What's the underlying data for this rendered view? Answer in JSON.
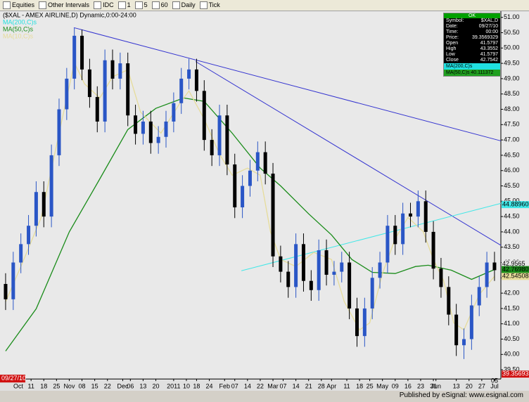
{
  "toolbar": {
    "items": [
      "Equities",
      "Other Intervals",
      "IDC",
      "1",
      "5",
      "60",
      "Daily",
      "Tick"
    ]
  },
  "footer": "Published by eSignal: www.esignal.com",
  "info_box": {
    "header": "OK",
    "rows": [
      [
        "Symbol:",
        "$XAL,D"
      ],
      [
        "Date:",
        "09/27/10"
      ],
      [
        "Time:",
        "00:00"
      ],
      [
        "Price:",
        "39.3569329"
      ],
      [
        "Open",
        "41.5797"
      ],
      [
        "High",
        "43.3552"
      ],
      [
        "Low",
        "41.5797"
      ],
      [
        "Close",
        "42.7542"
      ]
    ],
    "ma_rows": [
      "MA(200,C)s",
      "MA(50,C)s 40.111372"
    ]
  },
  "chart_data": {
    "type": "candlestick",
    "title": "($XAL - AMEX AIRLINE,D) Dynamic,0:00-24:00",
    "up_color": "#2a56c6",
    "down_color": "#000000",
    "background": "#e9e9e9",
    "x": [
      0,
      3,
      6,
      9,
      12,
      15,
      18,
      21,
      24,
      27,
      30,
      33,
      36,
      39,
      42,
      45,
      48,
      51,
      54,
      57,
      60,
      63,
      66,
      69,
      72,
      75,
      78,
      81,
      84,
      87,
      90,
      93,
      96,
      99,
      102,
      105,
      108,
      111,
      114,
      117,
      120,
      123,
      126,
      129,
      132,
      135,
      138,
      141,
      144,
      147,
      150,
      153,
      156,
      159,
      162,
      165,
      168,
      171,
      174,
      177,
      180,
      183,
      186,
      189,
      192
    ],
    "open": [
      42.3,
      41.8,
      43.0,
      43.6,
      44.2,
      45.3,
      44.5,
      46.5,
      48.0,
      49.0,
      50.4,
      49.3,
      48.4,
      47.6,
      49.6,
      49.0,
      49.5,
      47.8,
      47.2,
      47.6,
      46.9,
      47.1,
      47.6,
      48.2,
      49.0,
      49.3,
      48.6,
      47.0,
      46.5,
      47.8,
      46.2,
      44.8,
      45.5,
      46.0,
      46.6,
      45.9,
      43.2,
      42.7,
      42.2,
      43.6,
      42.4,
      42.1,
      43.4,
      42.6,
      42.7,
      43.0,
      41.5,
      40.6,
      41.5,
      42.5,
      43.0,
      44.2,
      43.6,
      44.6,
      44.5,
      45.0,
      44.0,
      42.8,
      42.2,
      41.3,
      40.3,
      40.5,
      41.6,
      42.2,
      43.0
    ],
    "high": [
      42.65,
      43.35,
      43.95,
      44.55,
      45.65,
      45.65,
      46.85,
      48.35,
      49.35,
      50.65,
      50.6,
      49.65,
      48.75,
      49.95,
      49.95,
      49.85,
      49.85,
      48.15,
      47.95,
      47.95,
      47.45,
      47.95,
      48.55,
      49.35,
      49.65,
      49.65,
      48.95,
      47.35,
      48.15,
      48.15,
      46.55,
      45.85,
      46.35,
      46.95,
      46.95,
      46.25,
      43.55,
      43.05,
      43.95,
      43.95,
      42.75,
      43.75,
      43.75,
      43.05,
      43.35,
      43.35,
      41.85,
      41.85,
      42.85,
      43.35,
      44.55,
      44.55,
      44.95,
      44.95,
      45.35,
      45.35,
      44.35,
      43.15,
      42.55,
      41.65,
      40.85,
      41.95,
      42.55,
      43.35,
      43.35
    ],
    "low": [
      41.45,
      41.45,
      42.65,
      43.25,
      43.85,
      44.15,
      44.15,
      46.15,
      47.65,
      48.65,
      48.95,
      48.05,
      47.25,
      47.25,
      48.65,
      48.65,
      47.45,
      46.85,
      46.85,
      46.55,
      46.55,
      46.75,
      47.25,
      47.85,
      48.65,
      48.25,
      46.65,
      46.15,
      46.15,
      45.85,
      44.45,
      44.45,
      45.15,
      45.65,
      45.55,
      42.85,
      42.35,
      41.85,
      41.85,
      42.05,
      41.75,
      41.75,
      42.25,
      42.25,
      42.35,
      41.15,
      40.25,
      40.25,
      41.15,
      42.15,
      42.65,
      43.25,
      43.25,
      44.15,
      44.15,
      43.65,
      42.45,
      41.85,
      40.95,
      39.95,
      39.85,
      40.15,
      41.25,
      41.85,
      42.4
    ],
    "close": [
      41.8,
      43.0,
      43.6,
      44.2,
      45.3,
      44.5,
      46.5,
      48.0,
      49.0,
      50.4,
      49.3,
      48.4,
      47.6,
      49.6,
      49.0,
      49.5,
      47.8,
      47.2,
      47.6,
      46.9,
      47.1,
      47.6,
      48.2,
      49.0,
      49.3,
      48.6,
      47.0,
      46.5,
      47.8,
      46.2,
      44.8,
      45.5,
      46.0,
      46.6,
      45.9,
      43.2,
      42.7,
      42.2,
      43.6,
      42.4,
      42.1,
      43.4,
      42.6,
      42.7,
      43.0,
      41.5,
      40.6,
      41.5,
      42.5,
      43.0,
      44.2,
      43.6,
      44.6,
      44.5,
      45.0,
      44.0,
      42.8,
      42.2,
      41.3,
      40.3,
      40.5,
      41.6,
      42.2,
      43.0,
      42.75
    ],
    "series": [
      {
        "name": "MA(200,C)s",
        "color": "#20e0e0"
      },
      {
        "name": "MA(50,C)s",
        "color": "#1a8c1a",
        "x": [
          0,
          12,
          25,
          37,
          48,
          59,
          70,
          78,
          89,
          100,
          108,
          119,
          128,
          136,
          144,
          153,
          161,
          166,
          175,
          183,
          192
        ],
        "values": [
          40.11,
          41.49,
          44.0,
          45.73,
          47.34,
          48.03,
          48.37,
          48.26,
          47.22,
          46.08,
          45.5,
          44.59,
          43.9,
          43.1,
          42.68,
          42.64,
          42.87,
          42.91,
          42.75,
          42.45,
          42.77
        ]
      },
      {
        "name": "MA(10,C)s",
        "color": "#e6dc9a",
        "x": [
          0,
          6,
          14,
          21,
          27,
          31,
          37,
          42,
          48,
          53,
          61,
          68,
          72,
          78,
          84,
          89,
          95,
          100,
          104,
          108,
          114,
          121,
          128,
          133,
          139,
          143,
          148,
          153,
          158,
          164,
          168,
          172,
          176,
          180,
          186,
          192
        ],
        "values": [
          41.72,
          42.87,
          44.47,
          47.22,
          49.52,
          48.83,
          48.37,
          49.06,
          49.29,
          47.91,
          47.22,
          48.14,
          48.6,
          47.68,
          46.54,
          45.85,
          46.08,
          45.85,
          44.01,
          43.1,
          42.87,
          43.33,
          43.1,
          41.72,
          40.8,
          41.03,
          42.64,
          43.78,
          44.47,
          44.01,
          43.1,
          42.41,
          41.03,
          40.8,
          41.95,
          42.55
        ]
      }
    ],
    "trendlines": [
      {
        "color": "#3434d0",
        "x": [
          26.8,
          194.5
        ],
        "values": [
          50.665,
          46.97
        ]
      },
      {
        "color": "#3434d0",
        "x": [
          74.6,
          194.5
        ],
        "values": [
          49.56,
          43.56
        ]
      },
      {
        "color": "#40e8e8",
        "x": [
          92.6,
          194.5
        ],
        "values": [
          42.73,
          44.93
        ]
      }
    ],
    "price_flags": [
      {
        "value": 44.889606,
        "color": "#40e8e8"
      },
      {
        "value": 42.9565,
        "color": "#e9e9e9"
      },
      {
        "value": 42.769806,
        "color": "#1a8c1a"
      },
      {
        "value": 42.545085,
        "color": "#e6dc9a"
      },
      {
        "value": 39.356933,
        "color": "#d01010"
      }
    ],
    "cursor_date": "09/27/10",
    "xlim": [
      -2.2,
      194.5
    ],
    "ylim": [
      39.2,
      51.2
    ],
    "yticks": [
      {
        "value": 39.5,
        "label": "39.50"
      },
      {
        "value": 40,
        "label": "40.00"
      },
      {
        "value": 40.5,
        "label": "40.50"
      },
      {
        "value": 41,
        "label": "41.00"
      },
      {
        "value": 41.5,
        "label": "41.50"
      },
      {
        "value": 42,
        "label": "42.00"
      },
      {
        "value": 42.5,
        "label": "42.50"
      },
      {
        "value": 43,
        "label": "43.00"
      },
      {
        "value": 43.5,
        "label": "43.50"
      },
      {
        "value": 44,
        "label": "44.00"
      },
      {
        "value": 44.5,
        "label": "44.50"
      },
      {
        "value": 45,
        "label": "45.00"
      },
      {
        "value": 45.5,
        "label": "45.50"
      },
      {
        "value": 46,
        "label": "46.00"
      },
      {
        "value": 46.5,
        "label": "46.50"
      },
      {
        "value": 47,
        "label": "47.00"
      },
      {
        "value": 47.5,
        "label": "47.50"
      },
      {
        "value": 48,
        "label": "48.00"
      },
      {
        "value": 48.5,
        "label": "48.50"
      },
      {
        "value": 49,
        "label": "49.00"
      },
      {
        "value": 49.5,
        "label": "49.50"
      },
      {
        "value": 50,
        "label": "50.00"
      },
      {
        "value": 50.5,
        "label": "50.50"
      },
      {
        "value": 51,
        "label": "51.00"
      }
    ],
    "xticks": [
      {
        "value": 5,
        "label": "Oct"
      },
      {
        "value": 10,
        "label": "11"
      },
      {
        "value": 15,
        "label": "18"
      },
      {
        "value": 20,
        "label": "25"
      },
      {
        "value": 25,
        "label": "Nov"
      },
      {
        "value": 30,
        "label": "08"
      },
      {
        "value": 35,
        "label": "15"
      },
      {
        "value": 40,
        "label": "22"
      },
      {
        "value": 46,
        "label": "Dec"
      },
      {
        "value": 49,
        "label": "06"
      },
      {
        "value": 54,
        "label": "13"
      },
      {
        "value": 59,
        "label": "20"
      },
      {
        "value": 66,
        "label": "2011"
      },
      {
        "value": 71,
        "label": "10"
      },
      {
        "value": 75,
        "label": "18"
      },
      {
        "value": 80,
        "label": "24"
      },
      {
        "value": 86,
        "label": "Feb"
      },
      {
        "value": 90,
        "label": "07"
      },
      {
        "value": 95,
        "label": "14"
      },
      {
        "value": 100,
        "label": "22"
      },
      {
        "value": 105,
        "label": "Mar"
      },
      {
        "value": 109,
        "label": "07"
      },
      {
        "value": 114,
        "label": "14"
      },
      {
        "value": 119,
        "label": "21"
      },
      {
        "value": 124,
        "label": "28"
      },
      {
        "value": 128,
        "label": "Apr"
      },
      {
        "value": 134,
        "label": "11"
      },
      {
        "value": 139,
        "label": "18"
      },
      {
        "value": 143,
        "label": "25"
      },
      {
        "value": 148,
        "label": "May"
      },
      {
        "value": 153,
        "label": "09"
      },
      {
        "value": 158,
        "label": "16"
      },
      {
        "value": 163,
        "label": "23"
      },
      {
        "value": 168,
        "label": "31"
      },
      {
        "value": 169,
        "label": "Jun"
      },
      {
        "value": 177,
        "label": "13"
      },
      {
        "value": 182,
        "label": "20"
      },
      {
        "value": 187,
        "label": "27"
      },
      {
        "value": 192,
        "label": "Jul"
      }
    ],
    "xticks_top": [
      {
        "value": 192,
        "label": "05"
      }
    ]
  }
}
